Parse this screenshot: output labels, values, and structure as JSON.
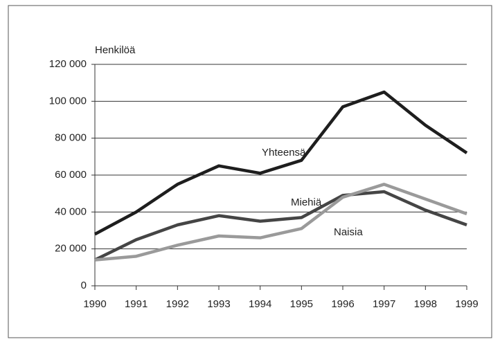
{
  "chart_data": {
    "type": "line",
    "y_label": "Henkilöä",
    "x": [
      1990,
      1991,
      1992,
      1993,
      1994,
      1995,
      1996,
      1997,
      1998,
      1999
    ],
    "xlim": [
      1990,
      1999
    ],
    "xticks": [
      1990,
      1991,
      1992,
      1993,
      1994,
      1995,
      1996,
      1997,
      1998,
      1999
    ],
    "ylim": [
      0,
      120000
    ],
    "yticks": [
      0,
      {
        "value": 20000,
        "label": "20 000"
      },
      {
        "value": 40000,
        "label": "40 000"
      },
      {
        "value": 60000,
        "label": "60 000"
      },
      {
        "value": 80000,
        "label": "80 000"
      },
      {
        "value": 100000,
        "label": "100 000"
      },
      {
        "value": 120000,
        "label": "120 000"
      }
    ],
    "grid": true,
    "series": [
      {
        "name": "Yhteensä",
        "color": "#1e1e1e",
        "values": [
          28000,
          40000,
          55000,
          65000,
          61000,
          68000,
          97000,
          105000,
          87000,
          72000
        ]
      },
      {
        "name": "Miehiä",
        "color": "#454545",
        "values": [
          14000,
          25000,
          33000,
          38000,
          35000,
          37000,
          49000,
          51000,
          41000,
          33000
        ]
      },
      {
        "name": "Naisia",
        "color": "#9a9a9a",
        "values": [
          14000,
          16000,
          22000,
          27000,
          26000,
          31000,
          48000,
          55000,
          47000,
          39000
        ]
      }
    ]
  }
}
